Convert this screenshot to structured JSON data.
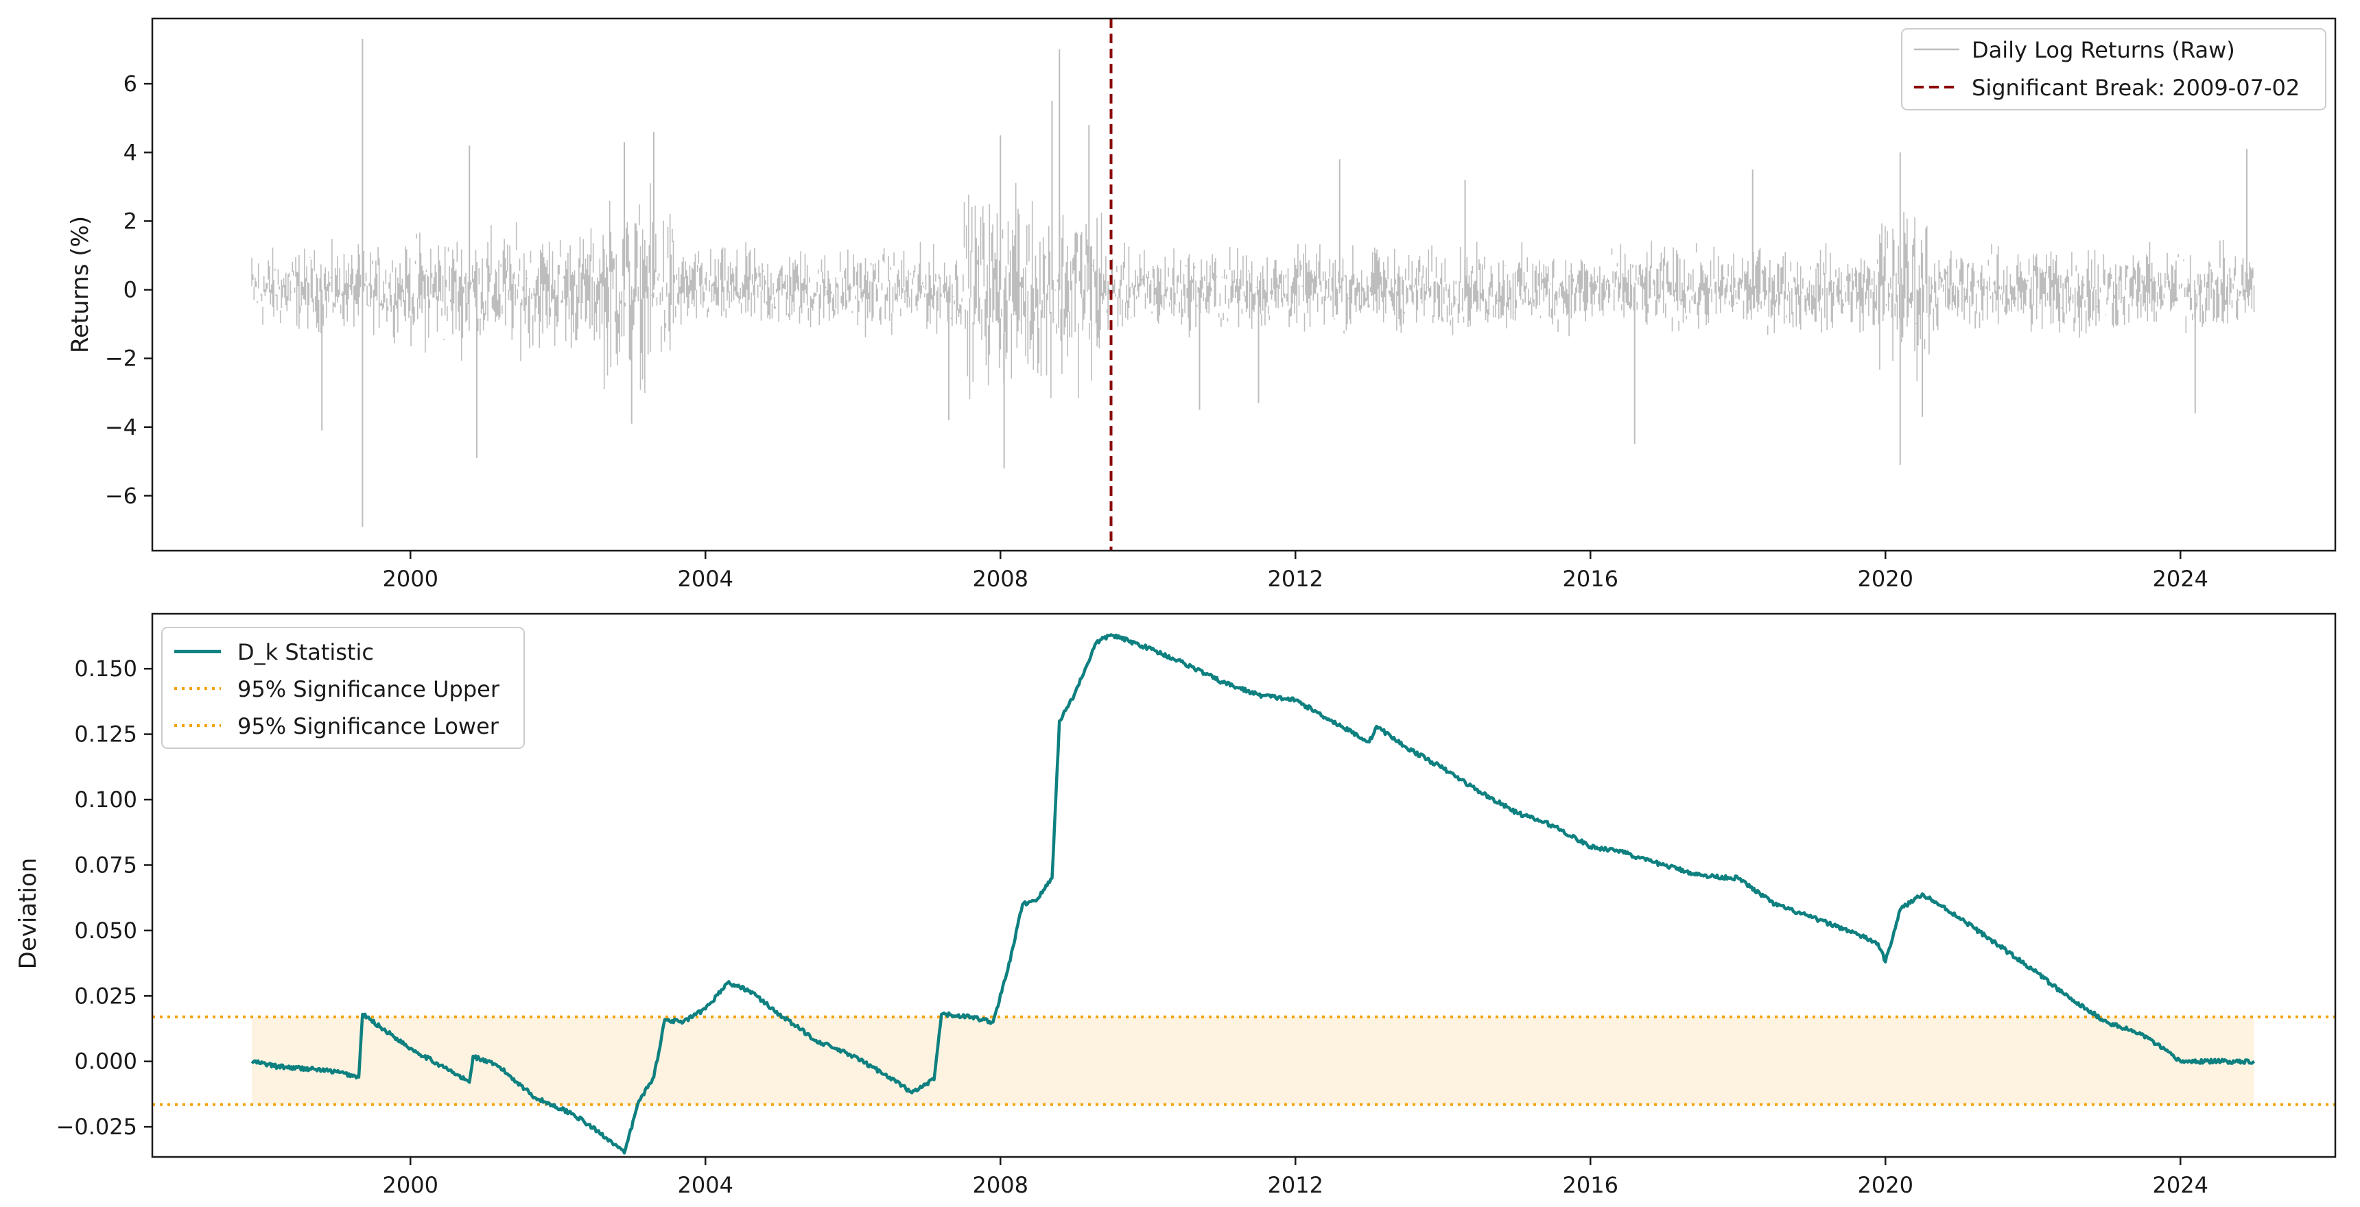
{
  "chart_data": [
    {
      "type": "line",
      "ylabel": "Returns (%)",
      "xlim": [
        1996.5,
        2026.1
      ],
      "ylim": [
        -7.6,
        7.9
      ],
      "yticks": [
        -6,
        -4,
        -2,
        0,
        2,
        4,
        6
      ],
      "ytick_labels": [
        "−6",
        "−4",
        "−2",
        "0",
        "2",
        "4",
        "6"
      ],
      "xticks": [
        2000,
        2004,
        2008,
        2012,
        2016,
        2020,
        2024
      ],
      "xtick_labels": [
        "2000",
        "2004",
        "2008",
        "2012",
        "2016",
        "2020",
        "2024"
      ],
      "legend_position": "upper-right",
      "legend": [
        "Daily Log Returns (Raw)",
        "Significant Break: 2009-07-02"
      ],
      "colors": {
        "returns": "#bdbdbd",
        "break": "#8b0000"
      },
      "series": [
        {
          "name": "Daily Log Returns (Raw)",
          "x_start": 1997.85,
          "x_end": 2025.0,
          "spikes": [
            [
              1999.35,
              7.3
            ],
            [
              1999.35,
              -6.9
            ],
            [
              2008.8,
              7.0
            ],
            [
              2008.0,
              4.5
            ],
            [
              2008.05,
              -5.2
            ],
            [
              2008.7,
              5.5
            ],
            [
              2009.2,
              4.8
            ],
            [
              2003.3,
              4.6
            ],
            [
              2002.9,
              4.3
            ],
            [
              2000.8,
              4.2
            ],
            [
              2012.6,
              3.8
            ],
            [
              2016.6,
              -4.5
            ],
            [
              2020.2,
              -5.1
            ],
            [
              2020.2,
              4.0
            ],
            [
              2024.2,
              -3.6
            ],
            [
              2024.9,
              4.1
            ],
            [
              1998.8,
              -4.1
            ],
            [
              2003.0,
              -3.9
            ],
            [
              2007.3,
              -3.8
            ],
            [
              2010.7,
              -3.5
            ],
            [
              2011.5,
              -3.3
            ],
            [
              2020.5,
              -3.7
            ],
            [
              2018.2,
              3.5
            ],
            [
              2014.3,
              3.2
            ],
            [
              2000.9,
              -4.9
            ]
          ]
        }
      ],
      "vline": {
        "name": "Significant Break: 2009-07-02",
        "x": 2009.5
      }
    },
    {
      "type": "line",
      "ylabel": "Deviation",
      "xlim": [
        1996.5,
        2026.1
      ],
      "ylim": [
        -0.0365,
        0.171
      ],
      "yticks": [
        -0.025,
        0.0,
        0.025,
        0.05,
        0.075,
        0.1,
        0.125,
        0.15
      ],
      "ytick_labels": [
        "−0.025",
        "0.000",
        "0.025",
        "0.050",
        "0.075",
        "0.100",
        "0.125",
        "0.150"
      ],
      "xticks": [
        2000,
        2004,
        2008,
        2012,
        2016,
        2020,
        2024
      ],
      "xtick_labels": [
        "2000",
        "2004",
        "2008",
        "2012",
        "2016",
        "2020",
        "2024"
      ],
      "legend_position": "upper-left",
      "legend": [
        "D_k Statistic",
        "95% Significance Upper",
        "95% Significance Lower"
      ],
      "colors": {
        "dk": "#0e8080",
        "bound": "#f5a000",
        "band": "#fdf3e0"
      },
      "hlines": {
        "upper": 0.017,
        "lower": -0.0165
      },
      "band": {
        "x": [
          1997.85,
          2025.0
        ],
        "y": [
          -0.0165,
          0.017
        ]
      },
      "series": [
        {
          "name": "D_k Statistic",
          "x": [
            1997.85,
            1998.2,
            1998.7,
            1999.0,
            1999.3,
            1999.35,
            1999.6,
            2000.0,
            2000.5,
            2000.8,
            2000.85,
            2001.2,
            2001.7,
            2002.2,
            2002.7,
            2002.9,
            2003.1,
            2003.3,
            2003.45,
            2003.7,
            2004.0,
            2004.3,
            2004.6,
            2005.0,
            2005.5,
            2006.0,
            2006.5,
            2006.8,
            2007.1,
            2007.2,
            2007.6,
            2007.9,
            2008.1,
            2008.3,
            2008.5,
            2008.7,
            2008.8,
            2009.0,
            2009.3,
            2009.5,
            2010.0,
            2010.5,
            2011.0,
            2011.5,
            2012.0,
            2012.5,
            2013.0,
            2013.1,
            2013.5,
            2014.0,
            2014.5,
            2015.0,
            2015.5,
            2016.0,
            2016.5,
            2016.6,
            2017.0,
            2017.5,
            2018.0,
            2018.5,
            2019.0,
            2019.5,
            2019.9,
            2020.0,
            2020.2,
            2020.5,
            2021.0,
            2021.5,
            2022.0,
            2022.5,
            2023.0,
            2023.5,
            2024.0,
            2024.5,
            2025.0
          ],
          "y": [
            0.0,
            -0.002,
            -0.003,
            -0.004,
            -0.006,
            0.018,
            0.013,
            0.005,
            -0.003,
            -0.008,
            0.002,
            -0.002,
            -0.014,
            -0.02,
            -0.03,
            -0.035,
            -0.015,
            -0.006,
            0.016,
            0.015,
            0.02,
            0.03,
            0.027,
            0.018,
            0.008,
            0.002,
            -0.006,
            -0.012,
            -0.007,
            0.018,
            0.017,
            0.015,
            0.035,
            0.06,
            0.062,
            0.07,
            0.13,
            0.14,
            0.16,
            0.163,
            0.158,
            0.152,
            0.145,
            0.14,
            0.138,
            0.13,
            0.122,
            0.128,
            0.12,
            0.112,
            0.103,
            0.095,
            0.09,
            0.082,
            0.08,
            0.078,
            0.075,
            0.071,
            0.07,
            0.06,
            0.055,
            0.05,
            0.045,
            0.038,
            0.058,
            0.064,
            0.055,
            0.045,
            0.035,
            0.024,
            0.015,
            0.01,
            0.0,
            0.0,
            0.0
          ]
        }
      ]
    }
  ]
}
